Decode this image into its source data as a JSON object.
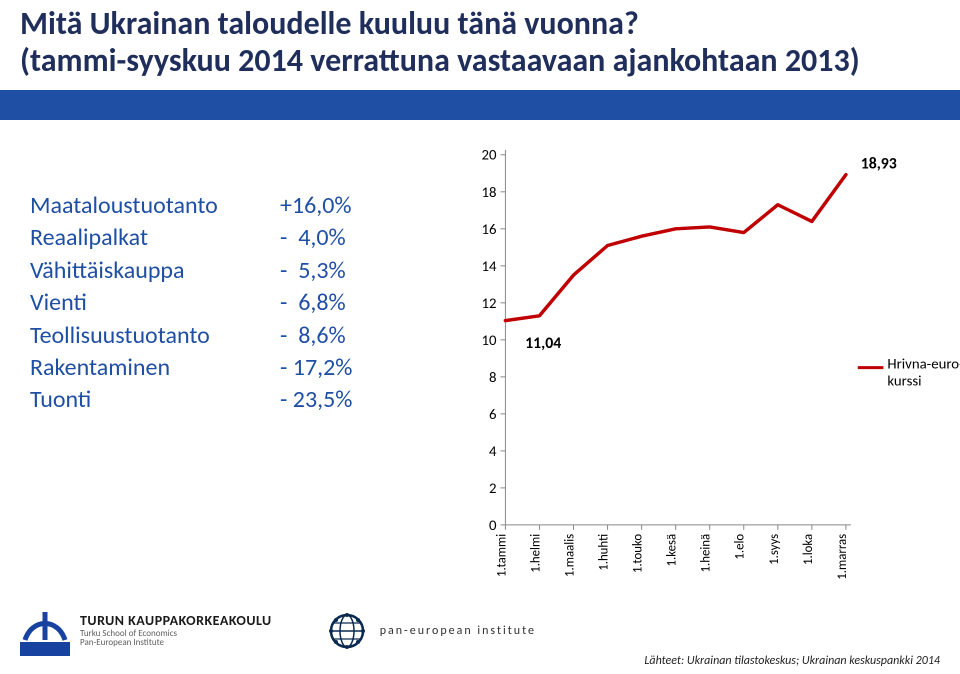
{
  "title": {
    "line1": "Mitä Ukrainan taloudelle kuuluu tänä vuonna?",
    "line2": "(tammi-syyskuu 2014 verrattuna vastaavaan ajankohtaan 2013)",
    "color": "#1f2e5a",
    "fontsize": 32,
    "fontweight": 700
  },
  "blue_band_color": "#1f4fa4",
  "stats": {
    "color": "#1f4fa4",
    "fontsize": 24,
    "rows": [
      {
        "label": "Maataloustuotanto",
        "value": "+16,0%"
      },
      {
        "label": "Reaalipalkat",
        "value": "-  4,0%"
      },
      {
        "label": "Vähittäiskauppa",
        "value": "-  5,3%"
      },
      {
        "label": "Vienti",
        "value": "-  6,8%"
      },
      {
        "label": "Teollisuustuotanto",
        "value": "-  8,6%"
      },
      {
        "label": "Rakentaminen",
        "value": "- 17,2%"
      },
      {
        "label": "Tuonti",
        "value": "- 23,5%"
      }
    ]
  },
  "chart": {
    "type": "line",
    "background_color": "#ffffff",
    "grid": false,
    "line_color": "#c00000",
    "line_width": 3.5,
    "y": {
      "ticks": [
        0,
        2,
        4,
        6,
        8,
        10,
        12,
        14,
        16,
        18,
        20
      ],
      "lim": [
        0,
        20
      ],
      "tick_fontsize": 15,
      "tick_color": "#000000"
    },
    "x": {
      "categories": [
        "1.tammi",
        "1.helmi",
        "1.maalis",
        "1.huhti",
        "1.touko",
        "1.kesä",
        "1.heinä",
        "1.elo",
        "1.syys",
        "1.loka",
        "1.marras"
      ],
      "label_fontsize": 13,
      "label_color": "#000000",
      "rotation": -90
    },
    "series": {
      "name": "Hrivna-euro-kurssi",
      "values": [
        11.04,
        11.3,
        13.5,
        15.1,
        15.6,
        16.0,
        16.1,
        15.8,
        17.3,
        16.4,
        18.93
      ]
    },
    "first_label": {
      "text": "11,04",
      "color": "#000000",
      "fontsize": 16,
      "fontweight": 700
    },
    "last_label": {
      "text": "18,93",
      "color": "#000000",
      "fontsize": 16,
      "fontweight": 700
    },
    "legend": {
      "text": "Hrivna-euro-kurssi",
      "color": "#000000",
      "fontsize": 15,
      "dash_color": "#c00000",
      "position": "right"
    },
    "axis_line_color": "#888888",
    "tick_mark_color": "#888888"
  },
  "footer": {
    "logo1": {
      "band_color": "#1842a0",
      "main": "TURUN KAUPPAKORKEAKOULU",
      "sub1": "Turku School of Economics",
      "sub2": "Pan-European Institute"
    },
    "logo2": {
      "text": "pan-european institute",
      "color": "#303030",
      "icon_color": "#0a2a52"
    },
    "sources": "Lähteet: Ukrainan tilastokeskus; Ukrainan keskuspankki 2014"
  }
}
